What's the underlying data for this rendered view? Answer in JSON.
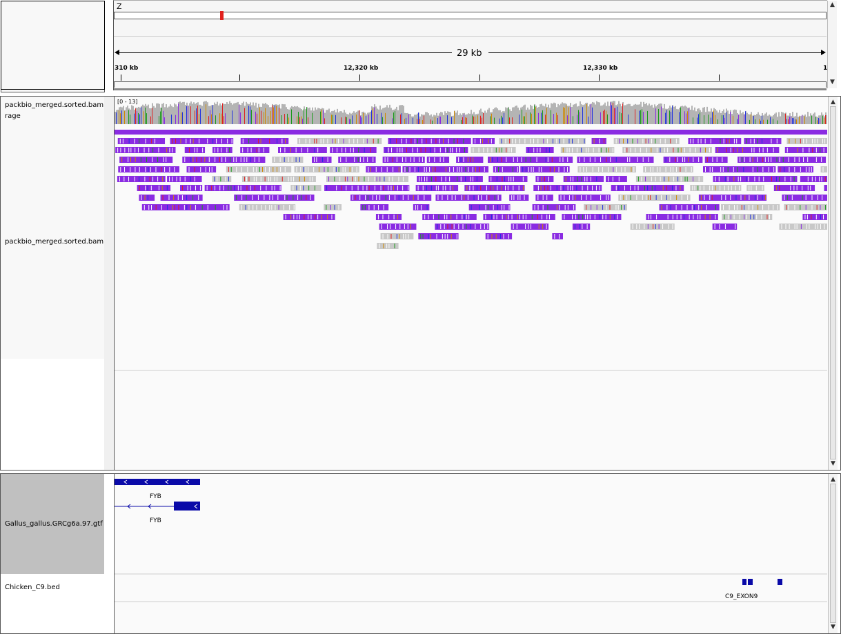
{
  "ideogram": {
    "chromosome": "Z"
  },
  "ruler": {
    "span_label": "29 kb",
    "ticks": [
      {
        "label": "310 kb"
      },
      {
        "label": "12,320 kb"
      },
      {
        "label": "12,330 kb"
      },
      {
        "label": "1"
      }
    ]
  },
  "tracks": {
    "coverage": {
      "name_line1": "packbio_merged.sorted.bam C",
      "name_line2": "rage",
      "range": "[0 - 13]"
    },
    "alignments": {
      "name": "packbio_merged.sorted.bam"
    },
    "gtf": {
      "name": "Gallus_gallus.GRCg6a.97.gtf",
      "features": [
        {
          "label": "FYB"
        },
        {
          "label": "FYB"
        }
      ]
    },
    "bed": {
      "name": "Chicken_C9.bed",
      "features": [
        {
          "label": "C9_EXON9"
        }
      ]
    }
  },
  "colors": {
    "coverage_gray": "#b4b4b4",
    "read_purple": "#8a2be2",
    "read_gray": "#c8c8c8",
    "gene_blue": "#0a0aa8",
    "ideogram_marker": "#e0201c",
    "name_panel_selected": "#c0c0c0"
  },
  "scroll_icons": {
    "up": "▲",
    "down": "▼"
  }
}
